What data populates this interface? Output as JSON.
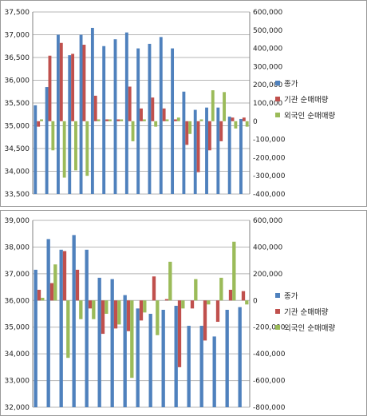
{
  "chart_data": [
    {
      "type": "bar",
      "title": "",
      "y_left": {
        "ylim": [
          33500,
          37500
        ],
        "step": 500,
        "ticks": [
          "33,500",
          "34,000",
          "34,500",
          "35,000",
          "35,500",
          "36,000",
          "36,500",
          "37,000",
          "37,500"
        ]
      },
      "y_right": {
        "ylim": [
          -400000,
          600000
        ],
        "step": 100000,
        "ticks": [
          "-400,000",
          "-300,000",
          "-200,000",
          "-100,000",
          "0",
          "100,000",
          "200,000",
          "300,000",
          "400,000",
          "500,000",
          "600,000"
        ]
      },
      "grid": true,
      "legend_position": "right",
      "series": [
        {
          "name": "종가",
          "axis": "left",
          "color": "#4f81bd",
          "values": [
            35450,
            35850,
            37000,
            36550,
            37000,
            37150,
            36750,
            36900,
            37050,
            36700,
            36800,
            36950,
            36700,
            35750,
            35350,
            35400,
            35400,
            35200,
            35150
          ]
        },
        {
          "name": "기관 순매매량",
          "axis": "right",
          "color": "#c0504d",
          "values": [
            -30000,
            360000,
            430000,
            370000,
            420000,
            140000,
            10000,
            10000,
            190000,
            70000,
            130000,
            70000,
            10000,
            -130000,
            -280000,
            -160000,
            -110000,
            20000,
            20000
          ]
        },
        {
          "name": "외국인 순매매량",
          "axis": "right",
          "color": "#9bbb59",
          "values": [
            10000,
            -160000,
            -310000,
            -270000,
            -300000,
            10000,
            10000,
            10000,
            -110000,
            10000,
            -30000,
            10000,
            20000,
            -70000,
            10000,
            170000,
            160000,
            -40000,
            -30000
          ]
        }
      ]
    },
    {
      "type": "bar",
      "title": "",
      "y_left": {
        "ylim": [
          32000,
          39000
        ],
        "step": 1000,
        "ticks": [
          "32,000",
          "33,000",
          "34,000",
          "35,000",
          "36,000",
          "37,000",
          "38,000",
          "39,000"
        ]
      },
      "y_right": {
        "ylim": [
          -800000,
          600000
        ],
        "step": 200000,
        "ticks": [
          "-800,000",
          "-600,000",
          "-400,000",
          "-200,000",
          "0",
          "200,000",
          "400,000",
          "600,000"
        ]
      },
      "grid": true,
      "legend_position": "right",
      "series": [
        {
          "name": "종가",
          "axis": "left",
          "color": "#4f81bd",
          "values": [
            37150,
            38300,
            37900,
            38450,
            37900,
            36850,
            36800,
            36200,
            35700,
            35500,
            35650,
            35800,
            35050,
            35050,
            34650,
            35650,
            35750
          ]
        },
        {
          "name": "기관 순매매량",
          "axis": "right",
          "color": "#c0504d",
          "values": [
            80000,
            130000,
            370000,
            230000,
            -60000,
            -250000,
            -210000,
            -230000,
            -150000,
            180000,
            10000,
            -500000,
            -60000,
            -300000,
            -160000,
            80000,
            70000
          ]
        },
        {
          "name": "외국인 순매매량",
          "axis": "right",
          "color": "#9bbb59",
          "values": [
            20000,
            270000,
            -430000,
            -140000,
            -140000,
            -100000,
            -180000,
            -580000,
            -90000,
            -260000,
            290000,
            -60000,
            160000,
            -30000,
            170000,
            440000,
            -30000
          ]
        }
      ]
    }
  ]
}
